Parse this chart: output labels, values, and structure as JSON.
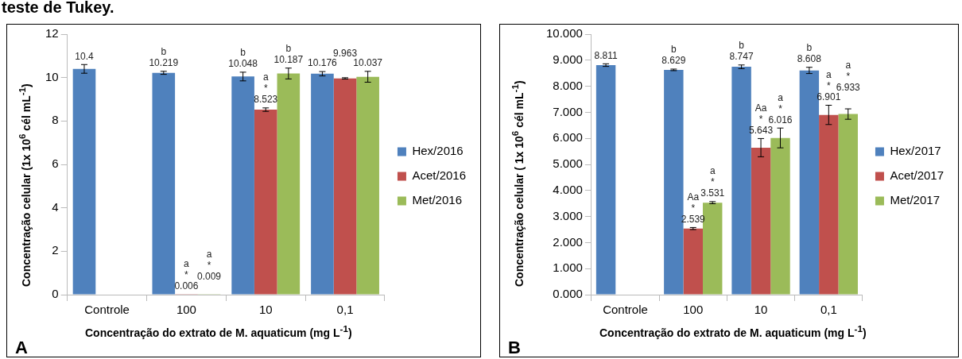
{
  "chart_data": [
    {
      "type": "bar",
      "title": "teste de Tukey.",
      "annotations": [
        "A"
      ],
      "xlabel": "Concentração do extrato de M. aquaticum (mg L$^{-1}$)",
      "ylabel": "Concentração celular (1x 10$^{6}$ cél mL$^{-1}$)",
      "categories": [
        "Controle",
        "100",
        "10",
        "0,1"
      ],
      "series": [
        {
          "name": "Hex/2016",
          "color": "#4f81bd",
          "values": [
            10.4,
            10.219,
            10.048,
            10.176
          ],
          "errors": [
            0.2,
            0.07,
            0.2,
            0.1
          ],
          "value_labels": [
            "10.4",
            "b\n10.219",
            "b\n10.048",
            "10.176"
          ]
        },
        {
          "name": "Acet/2016",
          "color": "#c0504d",
          "values": [
            null,
            0.006,
            8.523,
            9.963
          ],
          "errors": [
            null,
            null,
            0.08,
            0.03
          ],
          "value_labels": [
            null,
            "a\n*\n0.006",
            "a\n*\n8.523",
            "9.963"
          ]
        },
        {
          "name": "Met/2016",
          "color": "#9bbb59",
          "values": [
            null,
            0.009,
            10.187,
            10.037
          ],
          "errors": [
            null,
            null,
            0.25,
            0.25
          ],
          "value_labels": [
            null,
            "a\n*\n0.009",
            "b\n10.187",
            "10.037"
          ]
        }
      ],
      "ylim": [
        0,
        12
      ],
      "yticks": [
        0,
        2,
        4,
        6,
        8,
        10,
        12
      ],
      "grid": false,
      "legend": "right"
    },
    {
      "type": "bar",
      "annotations": [
        "B"
      ],
      "xlabel": "Concentração do extrato de M. aquaticum (mg L$^{-1}$)",
      "ylabel": "Concentração celular ( 1x 10$^{6}$ cél mL$^{-1}$)",
      "categories": [
        "Controle",
        "100",
        "10",
        "0,1"
      ],
      "series": [
        {
          "name": "Hex/2017",
          "color": "#4f81bd",
          "values": [
            8.811,
            8.629,
            8.747,
            8.608
          ],
          "errors": [
            0.05,
            0.03,
            0.07,
            0.12
          ],
          "value_labels": [
            "8.811",
            "b\n8.629",
            "b\n8.747",
            "b\n8.608"
          ]
        },
        {
          "name": "Acet/2017",
          "color": "#c0504d",
          "values": [
            null,
            2.539,
            5.643,
            6.901
          ],
          "errors": [
            null,
            0.04,
            0.35,
            0.37
          ],
          "value_labels": [
            null,
            "Aa\n*\n2.539",
            "Aa\n*\n5.643",
            "a\n*\n6.901"
          ]
        },
        {
          "name": "Met/2017",
          "color": "#9bbb59",
          "values": [
            null,
            3.531,
            6.016,
            6.933
          ],
          "errors": [
            null,
            0.04,
            0.38,
            0.2
          ],
          "value_labels": [
            null,
            "a\n*\n3.531",
            "a\n*\n6.016",
            "a\n*\n6.933"
          ]
        }
      ],
      "ylim": [
        0,
        10
      ],
      "yticks": [
        {
          "value": 0,
          "label": "0.000"
        },
        {
          "value": 1,
          "label": "1.000"
        },
        {
          "value": 2,
          "label": "2.000"
        },
        {
          "value": 3,
          "label": "3.000"
        },
        {
          "value": 4,
          "label": "4.000"
        },
        {
          "value": 5,
          "label": "5.000"
        },
        {
          "value": 6,
          "label": "6.000"
        },
        {
          "value": 7,
          "label": "7.000"
        },
        {
          "value": 8,
          "label": "8.000"
        },
        {
          "value": 9,
          "label": "9.000"
        },
        {
          "value": 10,
          "label": "10.000"
        }
      ],
      "grid": false,
      "legend": "right"
    }
  ]
}
